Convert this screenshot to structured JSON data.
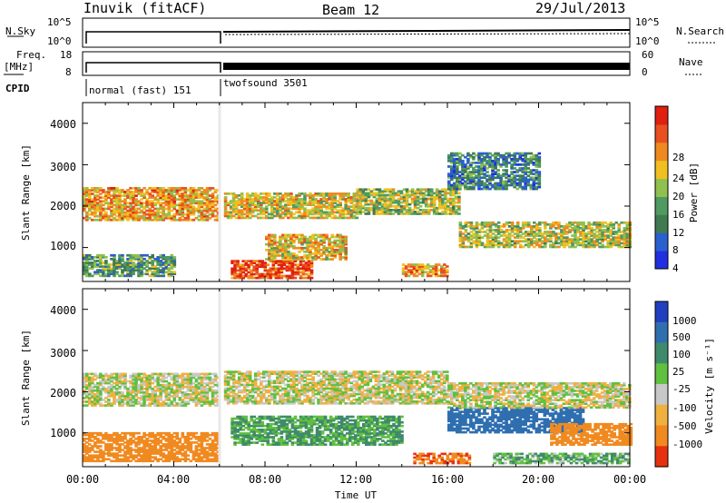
{
  "header": {
    "title": "Inuvik (fitACF)",
    "beam": "Beam 12",
    "date": "29/Jul/2013"
  },
  "strips": {
    "nsky_label": "N.Sky",
    "nsearch_label": "N.Search",
    "nsky_ticks": [
      "10^5",
      "10^0"
    ],
    "nsearch_ticks": [
      "10^5",
      "10^0"
    ],
    "freq_label_1": "Freq.",
    "freq_label_2": "[MHz]",
    "freq_ticks": [
      "18",
      "8"
    ],
    "nave_label": "Nave",
    "nave_ticks": [
      "60",
      "0"
    ],
    "cpid_label": "CPID",
    "cpid_modes": [
      {
        "name": "normal (fast) 151",
        "start_hour": 0,
        "end_hour": 6.1
      },
      {
        "name": "twofsound 3501",
        "start_hour": 6.1,
        "end_hour": 24
      }
    ]
  },
  "power_panel": {
    "ylabel": "Slant Range [km]",
    "yticks": [
      "1000",
      "2000",
      "3000",
      "4000"
    ],
    "colorbar_label": "Power [dB]",
    "colorbar_ticks": [
      "4",
      "8",
      "12",
      "16",
      "20",
      "24",
      "28"
    ],
    "colors": [
      "#2030e0",
      "#2a5fd0",
      "#3f7a50",
      "#4f9a60",
      "#8fc050",
      "#f0c020",
      "#f08a20",
      "#e85020",
      "#e02010"
    ]
  },
  "velocity_panel": {
    "ylabel": "Slant Range [km]",
    "yticks": [
      "1000",
      "2000",
      "3000",
      "4000"
    ],
    "colorbar_label": "Velocity [m s⁻¹]",
    "colorbar_ticks": [
      "1000",
      "500",
      "100",
      "25",
      "-25",
      "-100",
      "-500",
      "-1000"
    ],
    "colors": [
      "#2040c0",
      "#2f6fb0",
      "#3f8a6a",
      "#60c040",
      "#c8c8c8",
      "#f0b040",
      "#f08a20",
      "#e83010"
    ]
  },
  "xaxis": {
    "ticks": [
      "00:00",
      "04:00",
      "08:00",
      "12:00",
      "16:00",
      "20:00",
      "00:00"
    ],
    "label": "Time UT"
  },
  "chart_data": [
    {
      "type": "heatmap",
      "title": "",
      "xlabel": "Time UT",
      "ylabel": "Slant Range [km]",
      "xlim": [
        0,
        24
      ],
      "ylim": [
        180,
        4500
      ],
      "colorbar": {
        "label": "Power [dB]",
        "range": [
          0,
          32
        ],
        "ticks": [
          4,
          8,
          12,
          16,
          20,
          24,
          28
        ]
      },
      "bands": [
        {
          "t0": 0.0,
          "t1": 6.0,
          "r0": 1650,
          "r1": 2450,
          "db": 22
        },
        {
          "t0": 6.2,
          "t1": 12.0,
          "r0": 1700,
          "r1": 2300,
          "db": 19
        },
        {
          "t0": 12.0,
          "t1": 16.5,
          "r0": 1800,
          "r1": 2400,
          "db": 16
        },
        {
          "t0": 16.5,
          "t1": 24.0,
          "r0": 1000,
          "r1": 1600,
          "db": 17
        },
        {
          "t0": 6.5,
          "t1": 10.0,
          "r0": 250,
          "r1": 700,
          "db": 28
        },
        {
          "t0": 8.0,
          "t1": 11.5,
          "r0": 700,
          "r1": 1300,
          "db": 20
        },
        {
          "t0": 14.0,
          "t1": 16.0,
          "r0": 300,
          "r1": 600,
          "db": 22
        },
        {
          "t0": 0.0,
          "t1": 4.0,
          "r0": 300,
          "r1": 800,
          "db": 12
        },
        {
          "t0": 16.0,
          "t1": 20.0,
          "r0": 2400,
          "r1": 3300,
          "db": 9
        }
      ]
    },
    {
      "type": "heatmap",
      "title": "",
      "xlabel": "Time UT",
      "ylabel": "Slant Range [km]",
      "xlim": [
        0,
        24
      ],
      "ylim": [
        180,
        4500
      ],
      "colorbar": {
        "label": "Velocity [m s⁻¹]",
        "ticks": [
          1000,
          500,
          100,
          25,
          -25,
          -100,
          -500,
          -1000
        ]
      },
      "bands": [
        {
          "t0": 0.0,
          "t1": 6.0,
          "r0": 1650,
          "r1": 2450,
          "v": 0
        },
        {
          "t0": 6.2,
          "t1": 16.0,
          "r0": 1700,
          "r1": 2500,
          "v": 0
        },
        {
          "t0": 16.0,
          "t1": 22.0,
          "r0": 1000,
          "r1": 1600,
          "v": 600
        },
        {
          "t0": 16.0,
          "t1": 24.0,
          "r0": 1600,
          "r1": 2200,
          "v": 0
        },
        {
          "t0": 6.5,
          "t1": 14.0,
          "r0": 700,
          "r1": 1400,
          "v": 120
        },
        {
          "t0": 0.0,
          "t1": 6.0,
          "r0": 300,
          "r1": 1000,
          "v": -300
        },
        {
          "t0": 14.5,
          "t1": 17.0,
          "r0": 250,
          "r1": 500,
          "v": -500
        },
        {
          "t0": 18.0,
          "t1": 24.0,
          "r0": 250,
          "r1": 500,
          "v": 80
        },
        {
          "t0": 20.5,
          "t1": 24.0,
          "r0": 700,
          "r1": 1200,
          "v": -400
        }
      ]
    }
  ]
}
